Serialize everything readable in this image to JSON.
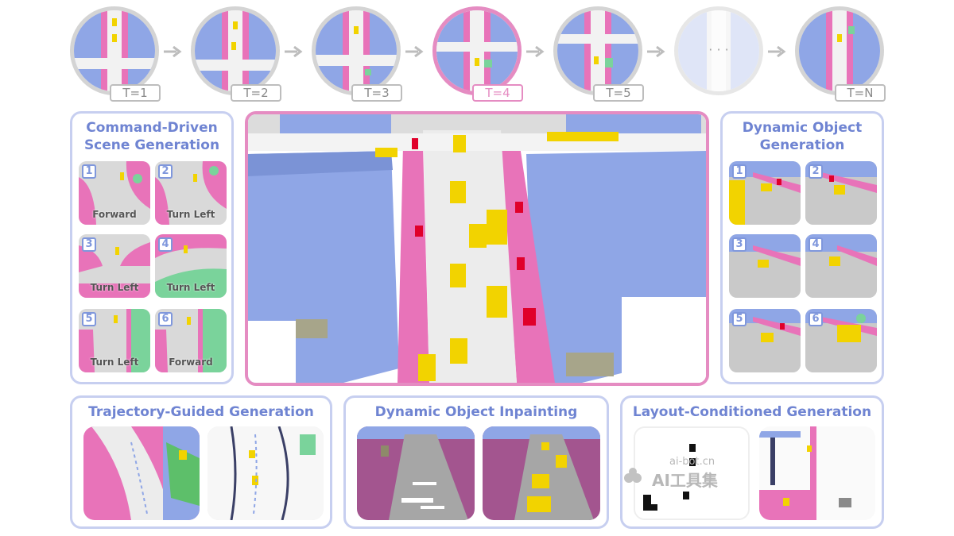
{
  "timeline": {
    "frames": [
      {
        "label": "T=1"
      },
      {
        "label": "T=2"
      },
      {
        "label": "T=3"
      },
      {
        "label": "T=4"
      },
      {
        "label": "T=5"
      },
      {
        "label": ""
      },
      {
        "label": "T=N"
      }
    ],
    "ellipsis": "· · ·"
  },
  "panels": {
    "command": {
      "title_line1": "Command-Driven",
      "title_line2": "Scene Generation",
      "items": [
        {
          "num": "1",
          "label": "Forward"
        },
        {
          "num": "2",
          "label": "Turn Left"
        },
        {
          "num": "3",
          "label": "Turn Left"
        },
        {
          "num": "4",
          "label": "Turn Left"
        },
        {
          "num": "5",
          "label": "Turn Left"
        },
        {
          "num": "6",
          "label": "Forward"
        }
      ]
    },
    "dynamic": {
      "title_line1": "Dynamic Object",
      "title_line2": "Generation",
      "items": [
        {
          "num": "1"
        },
        {
          "num": "2"
        },
        {
          "num": "3"
        },
        {
          "num": "4"
        },
        {
          "num": "5"
        },
        {
          "num": "6"
        }
      ]
    },
    "trajectory": {
      "title": "Trajectory-Guided Generation"
    },
    "inpainting": {
      "title": "Dynamic Object Inpainting"
    },
    "layout": {
      "title": "Layout-Conditioned Generation"
    }
  },
  "watermark": {
    "line1": "ai-bot.cn",
    "line2": "AI工具集"
  },
  "colors": {
    "road": "#e3e3e3",
    "sidewalk": "#e873b9",
    "building": "#8fa6e6",
    "car": "#f2d300",
    "vegetation": "#7ad39b",
    "accent": "#6f84d2",
    "active": "#e58cc2"
  }
}
